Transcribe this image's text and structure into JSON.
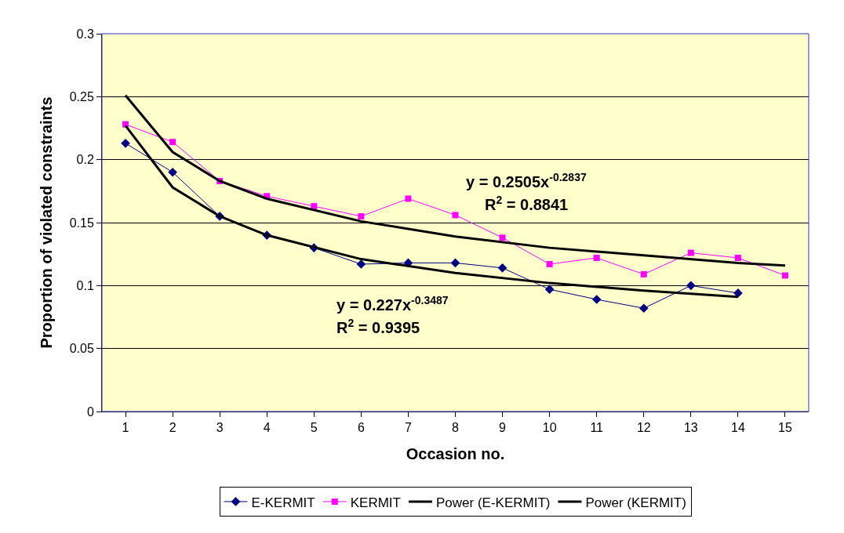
{
  "chart_data": {
    "type": "line",
    "xlabel": "Occasion no.",
    "ylabel": "Proportion of violated constraints",
    "x": [
      1,
      2,
      3,
      4,
      5,
      6,
      7,
      8,
      9,
      10,
      11,
      12,
      13,
      14,
      15
    ],
    "series": [
      {
        "name": "E-KERMIT",
        "color": "#000080",
        "marker": "diamond",
        "values": [
          0.213,
          0.19,
          0.155,
          0.14,
          0.13,
          0.117,
          0.118,
          0.118,
          0.114,
          0.097,
          0.089,
          0.082,
          0.1,
          0.094,
          null
        ]
      },
      {
        "name": "KERMIT",
        "color": "#ff00ff",
        "marker": "square",
        "values": [
          0.228,
          0.214,
          0.183,
          0.171,
          0.163,
          0.155,
          0.169,
          0.156,
          0.138,
          0.117,
          0.122,
          0.109,
          0.126,
          0.122,
          0.108
        ]
      },
      {
        "name": "Power (E-KERMIT)",
        "color": "#000000",
        "marker": "none",
        "x": [
          1,
          2,
          3,
          4,
          6,
          8,
          10,
          12,
          14
        ],
        "values": [
          0.227,
          0.178,
          0.155,
          0.14,
          0.121,
          0.11,
          0.102,
          0.096,
          0.091
        ]
      },
      {
        "name": "Power (KERMIT)",
        "color": "#000000",
        "marker": "none",
        "x": [
          1,
          2,
          3,
          4,
          6,
          8,
          10,
          12,
          14,
          15
        ],
        "values": [
          0.251,
          0.206,
          0.183,
          0.169,
          0.151,
          0.139,
          0.13,
          0.124,
          0.118,
          0.116
        ]
      }
    ],
    "annotations": [
      "y = 0.2505x$^{-0.2837}$",
      "R$^{2}$ = 0.8841",
      "y = 0.227x$^{-0.3487}$",
      "R$^{2}$ = 0.9395"
    ],
    "xlim": [
      0.5,
      15.5
    ],
    "xticks": [
      1,
      2,
      3,
      4,
      5,
      6,
      7,
      8,
      9,
      10,
      11,
      12,
      13,
      14,
      15
    ],
    "ylim": [
      0,
      0.3
    ],
    "yticks": [
      0,
      0.05,
      0.1,
      0.15,
      0.2,
      0.25,
      0.3
    ],
    "grid": "y",
    "legend": "bottom",
    "line_style": "solid"
  }
}
